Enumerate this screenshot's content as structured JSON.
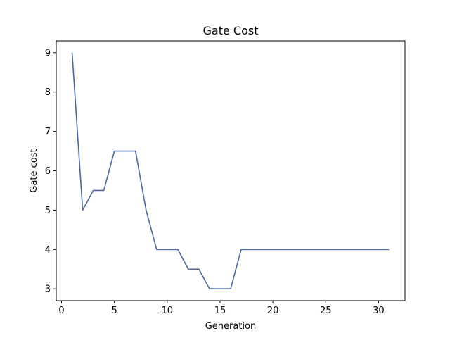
{
  "chart_data": {
    "type": "line",
    "title": "Gate Cost",
    "xlabel": "Generation",
    "ylabel": "Gate cost",
    "xlim": [
      -0.5,
      32.5
    ],
    "ylim": [
      2.7,
      9.3
    ],
    "xticks": [
      0,
      5,
      10,
      15,
      20,
      25,
      30
    ],
    "yticks": [
      3,
      4,
      5,
      6,
      7,
      8,
      9
    ],
    "grid": false,
    "series": [
      {
        "color": "#4c67a0",
        "x": [
          1,
          2,
          3,
          4,
          5,
          6,
          7,
          8,
          9,
          10,
          11,
          12,
          13,
          14,
          15,
          16,
          17,
          18,
          19,
          20,
          21,
          22,
          23,
          24,
          25,
          26,
          27,
          28,
          29,
          30,
          31
        ],
        "y": [
          9,
          5,
          5.5,
          5.5,
          6.5,
          6.5,
          6.5,
          5,
          4,
          4,
          4,
          3.5,
          3.5,
          3,
          3,
          3,
          4,
          4,
          4,
          4,
          4,
          4,
          4,
          4,
          4,
          4,
          4,
          4,
          4,
          4,
          4
        ]
      }
    ]
  }
}
